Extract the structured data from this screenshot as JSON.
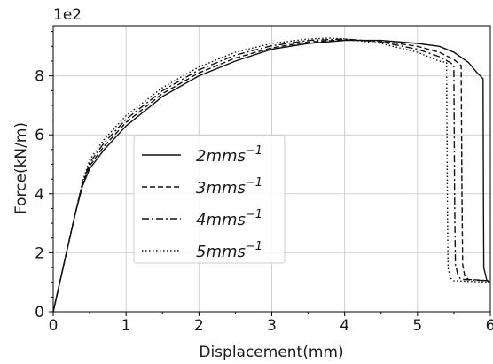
{
  "chart_data": {
    "type": "line",
    "title": "",
    "xlabel": "Displacement(mm)",
    "ylabel": "Force(kN/m)",
    "y_offset_label": "1e2",
    "xlim": [
      0,
      6
    ],
    "ylim": [
      0,
      9.7
    ],
    "x_ticks": [
      "0",
      "1",
      "2",
      "3",
      "4",
      "5",
      "6"
    ],
    "y_ticks": [
      "0",
      "2",
      "4",
      "6",
      "8"
    ],
    "grid": true,
    "legend_position": "center-left",
    "series": [
      {
        "name": "2mms⁻¹",
        "label_base": "2mms",
        "label_exp": "−1",
        "dash": "solid",
        "x": [
          0,
          0.1,
          0.2,
          0.3,
          0.4,
          0.5,
          0.7,
          1.0,
          1.5,
          2.0,
          2.5,
          3.0,
          3.5,
          4.0,
          4.5,
          5.0,
          5.3,
          5.5,
          5.7,
          5.82,
          5.9,
          5.905,
          5.91,
          5.95,
          5.97,
          6.0
        ],
        "y": [
          0,
          1.1,
          2.2,
          3.3,
          4.25,
          4.85,
          5.5,
          6.3,
          7.3,
          8.0,
          8.5,
          8.9,
          9.1,
          9.2,
          9.2,
          9.1,
          9.0,
          8.8,
          8.45,
          8.1,
          7.9,
          4.0,
          1.5,
          1.08,
          1.02,
          1.0
        ]
      },
      {
        "name": "3mms⁻¹",
        "label_base": "3mms",
        "label_exp": "−1",
        "dash": "dashed",
        "x": [
          0,
          0.1,
          0.2,
          0.3,
          0.4,
          0.5,
          0.7,
          1.0,
          1.5,
          2.0,
          2.5,
          3.0,
          3.5,
          4.0,
          4.5,
          5.0,
          5.3,
          5.5,
          5.55,
          5.6,
          5.61,
          5.62,
          5.65,
          5.7,
          6.0
        ],
        "y": [
          0,
          1.1,
          2.2,
          3.3,
          4.3,
          4.95,
          5.62,
          6.42,
          7.4,
          8.1,
          8.6,
          8.95,
          9.15,
          9.22,
          9.18,
          9.0,
          8.8,
          8.55,
          8.45,
          8.35,
          4.0,
          1.6,
          1.2,
          1.1,
          1.05
        ]
      },
      {
        "name": "4mms⁻¹",
        "label_base": "4mms",
        "label_exp": "−1",
        "dash": "dashdot",
        "x": [
          0,
          0.1,
          0.2,
          0.3,
          0.4,
          0.5,
          0.7,
          1.0,
          1.5,
          2.0,
          2.5,
          3.0,
          3.5,
          4.0,
          4.5,
          5.0,
          5.3,
          5.45,
          5.5,
          5.51,
          5.52,
          5.56,
          5.6,
          6.0
        ],
        "y": [
          0,
          1.1,
          2.2,
          3.3,
          4.35,
          5.05,
          5.73,
          6.53,
          7.5,
          8.2,
          8.7,
          9.02,
          9.2,
          9.25,
          9.15,
          8.9,
          8.65,
          8.45,
          8.35,
          4.0,
          1.6,
          1.2,
          1.1,
          1.05
        ]
      },
      {
        "name": "5mms⁻¹",
        "label_base": "5mms",
        "label_exp": "−1",
        "dash": "dotted",
        "x": [
          0,
          0.1,
          0.2,
          0.3,
          0.4,
          0.5,
          0.7,
          1.0,
          1.5,
          2.0,
          2.5,
          3.0,
          3.5,
          3.8,
          4.0,
          4.5,
          5.0,
          5.3,
          5.4,
          5.41,
          5.42,
          5.45,
          5.5,
          6.0
        ],
        "y": [
          0,
          1.1,
          2.2,
          3.3,
          4.4,
          5.15,
          5.85,
          6.65,
          7.6,
          8.3,
          8.8,
          9.1,
          9.25,
          9.28,
          9.25,
          9.1,
          8.8,
          8.5,
          8.45,
          4.0,
          1.5,
          1.15,
          1.05,
          1.0
        ]
      }
    ]
  }
}
